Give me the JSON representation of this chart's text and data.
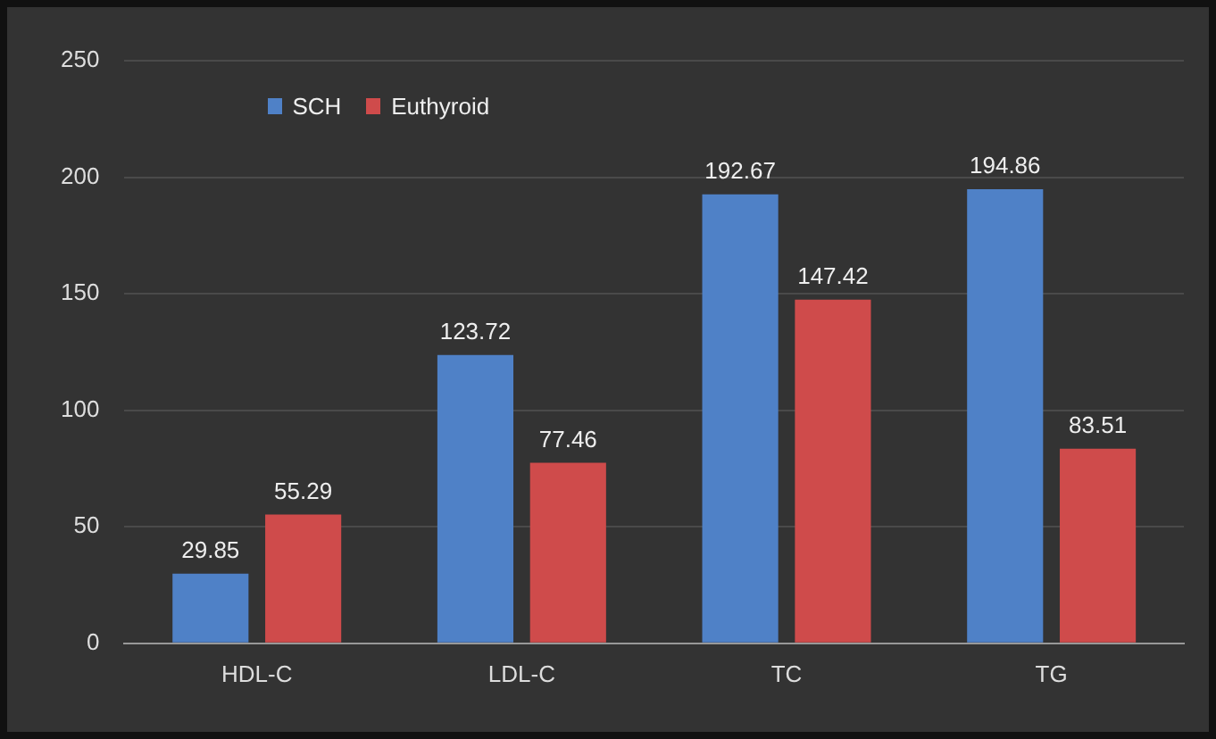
{
  "chart_data": {
    "type": "bar",
    "categories": [
      "HDL-C",
      "LDL-C",
      "TC",
      "TG"
    ],
    "series": [
      {
        "name": "SCH",
        "color": "#4f81c7",
        "values": [
          29.85,
          123.72,
          192.67,
          194.86
        ]
      },
      {
        "name": "Euthyroid",
        "color": "#cf4b4b",
        "values": [
          55.29,
          77.46,
          147.42,
          83.51
        ]
      }
    ],
    "ylim": [
      0,
      250
    ],
    "yticks": [
      0,
      50,
      100,
      150,
      200,
      250
    ],
    "grid": "y",
    "legend": "top left",
    "data_labels": true
  }
}
